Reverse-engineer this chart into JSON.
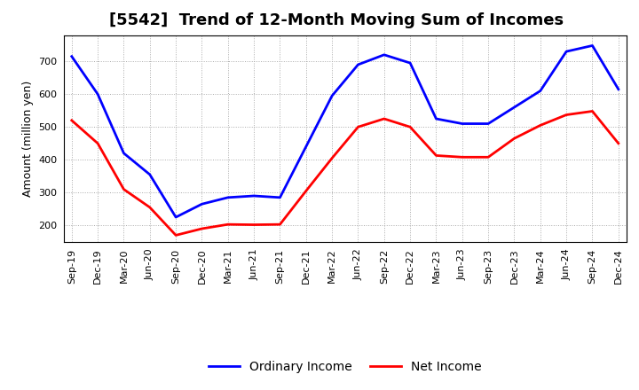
{
  "title": "[5542]  Trend of 12-Month Moving Sum of Incomes",
  "ylabel": "Amount (million yen)",
  "x_labels": [
    "Sep-19",
    "Dec-19",
    "Mar-20",
    "Jun-20",
    "Sep-20",
    "Dec-20",
    "Mar-21",
    "Jun-21",
    "Sep-21",
    "Dec-21",
    "Mar-22",
    "Jun-22",
    "Sep-22",
    "Dec-22",
    "Mar-23",
    "Jun-23",
    "Sep-23",
    "Dec-23",
    "Mar-24",
    "Jun-24",
    "Sep-24",
    "Dec-24"
  ],
  "ordinary_income": [
    715,
    600,
    420,
    355,
    225,
    265,
    285,
    290,
    285,
    440,
    595,
    690,
    720,
    695,
    525,
    510,
    510,
    560,
    610,
    730,
    748,
    615
  ],
  "net_income": [
    520,
    450,
    310,
    255,
    170,
    190,
    203,
    202,
    203,
    305,
    405,
    500,
    525,
    500,
    413,
    408,
    408,
    465,
    505,
    537,
    548,
    450
  ],
  "ordinary_income_color": "#0000ff",
  "net_income_color": "#ff0000",
  "background_color": "#ffffff",
  "grid_color": "#aaaaaa",
  "ylim": [
    150,
    780
  ],
  "yticks": [
    200,
    300,
    400,
    500,
    600,
    700
  ],
  "line_width": 2.0,
  "title_fontsize": 13,
  "label_fontsize": 9,
  "tick_fontsize": 8,
  "legend_fontsize": 10
}
